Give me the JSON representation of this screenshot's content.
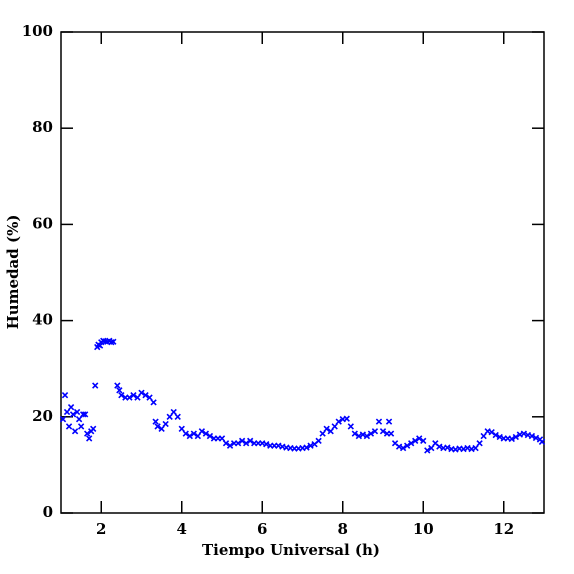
{
  "chart_data": {
    "type": "scatter",
    "xlabel": "Tiempo Universal (h)",
    "ylabel": "Humedad (%)",
    "xlim": [
      1,
      13
    ],
    "ylim": [
      0,
      100
    ],
    "xticks": [
      2,
      4,
      6,
      8,
      10,
      12
    ],
    "yticks": [
      0,
      20,
      40,
      60,
      80,
      100
    ],
    "series": [
      {
        "color": "#0000ff",
        "x": [
          1.05,
          1.1,
          1.15,
          1.2,
          1.25,
          1.3,
          1.35,
          1.4,
          1.45,
          1.5,
          1.55,
          1.6,
          1.65,
          1.7,
          1.75,
          1.8,
          1.85,
          1.9,
          1.93,
          1.97,
          2.0,
          2.05,
          2.1,
          2.15,
          2.2,
          2.25,
          2.3,
          2.4,
          2.45,
          2.5,
          2.6,
          2.7,
          2.8,
          2.9,
          3.0,
          3.1,
          3.2,
          3.3,
          3.35,
          3.4,
          3.5,
          3.6,
          3.7,
          3.8,
          3.9,
          4.0,
          4.1,
          4.2,
          4.3,
          4.4,
          4.5,
          4.6,
          4.7,
          4.8,
          4.9,
          5.0,
          5.1,
          5.2,
          5.3,
          5.4,
          5.5,
          5.6,
          5.7,
          5.8,
          5.9,
          6.0,
          6.1,
          6.2,
          6.3,
          6.4,
          6.5,
          6.6,
          6.7,
          6.8,
          6.9,
          7.0,
          7.1,
          7.2,
          7.3,
          7.4,
          7.5,
          7.6,
          7.7,
          7.8,
          7.9,
          8.0,
          8.1,
          8.2,
          8.3,
          8.4,
          8.5,
          8.6,
          8.7,
          8.8,
          8.9,
          9.0,
          9.1,
          9.15,
          9.2,
          9.3,
          9.4,
          9.5,
          9.6,
          9.7,
          9.8,
          9.9,
          10.0,
          10.1,
          10.2,
          10.3,
          10.4,
          10.5,
          10.6,
          10.7,
          10.8,
          10.9,
          11.0,
          11.1,
          11.2,
          11.3,
          11.4,
          11.5,
          11.6,
          11.7,
          11.8,
          11.9,
          12.0,
          12.1,
          12.2,
          12.3,
          12.4,
          12.5,
          12.6,
          12.7,
          12.8,
          12.9,
          12.95
        ],
        "values": [
          19.5,
          24.5,
          21,
          18,
          22,
          20.5,
          17,
          21,
          19.5,
          18,
          20.5,
          20.5,
          16.5,
          15.5,
          17,
          17.5,
          26.5,
          34.5,
          35,
          34.8,
          35.5,
          35.8,
          35.7,
          35.6,
          35.8,
          35.5,
          35.6,
          26.5,
          25.5,
          24.5,
          24,
          24,
          24.5,
          24,
          25,
          24.5,
          24,
          23,
          19,
          18,
          17.5,
          18.5,
          20,
          21,
          20,
          17.5,
          16.5,
          16,
          16.5,
          16,
          17,
          16.5,
          16,
          15.5,
          15.5,
          15.5,
          14.5,
          14,
          14.5,
          14.5,
          15,
          14.5,
          15,
          14.5,
          14.5,
          14.5,
          14.3,
          14,
          14,
          14,
          13.8,
          13.6,
          13.5,
          13.4,
          13.4,
          13.5,
          13.6,
          14,
          14.3,
          15,
          16.5,
          17.5,
          17,
          18,
          19,
          19.5,
          19.6,
          18,
          16.5,
          16,
          16.3,
          16,
          16.5,
          17,
          19,
          17,
          16.5,
          19,
          16.5,
          14.5,
          13.8,
          13.5,
          14,
          14.5,
          15,
          15.5,
          15,
          13,
          13.5,
          14.5,
          13.8,
          13.5,
          13.6,
          13.3,
          13.2,
          13.4,
          13.3,
          13.5,
          13.3,
          13.5,
          14.5,
          16,
          17,
          16.8,
          16.2,
          15.8,
          15.5,
          15.5,
          15.4,
          15.8,
          16.3,
          16.5,
          16.2,
          16,
          15.6,
          15.3,
          14.8
        ]
      }
    ]
  }
}
